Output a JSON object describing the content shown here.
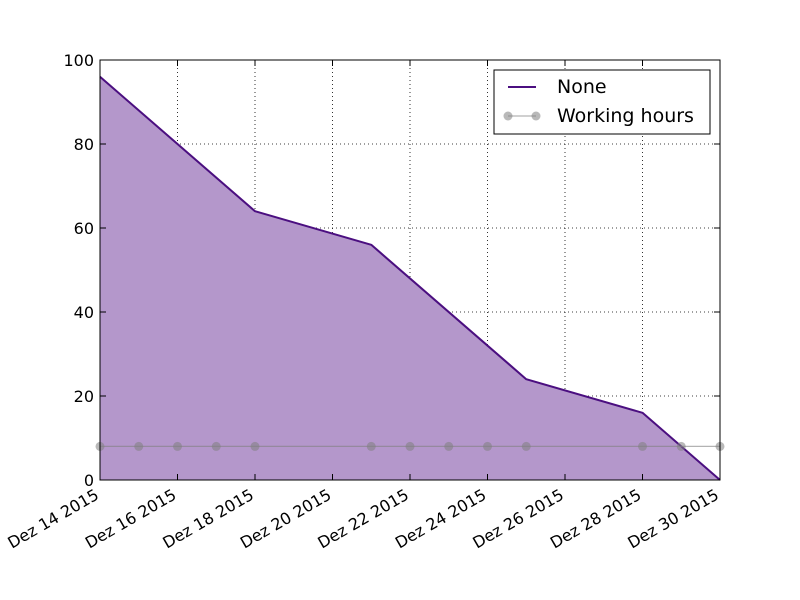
{
  "chart_data": {
    "type": "area",
    "x_type": "date",
    "xlim": [
      "2015-12-14",
      "2015-12-30"
    ],
    "ylim": [
      0,
      100
    ],
    "x_ticks": [
      {
        "date": "2015-12-14",
        "label": "Dez 14 2015"
      },
      {
        "date": "2015-12-16",
        "label": "Dez 16 2015"
      },
      {
        "date": "2015-12-18",
        "label": "Dez 18 2015"
      },
      {
        "date": "2015-12-20",
        "label": "Dez 20 2015"
      },
      {
        "date": "2015-12-22",
        "label": "Dez 22 2015"
      },
      {
        "date": "2015-12-24",
        "label": "Dez 24 2015"
      },
      {
        "date": "2015-12-26",
        "label": "Dez 26 2015"
      },
      {
        "date": "2015-12-28",
        "label": "Dez 28 2015"
      },
      {
        "date": "2015-12-30",
        "label": "Dez 30 2015"
      }
    ],
    "y_ticks": [
      0,
      20,
      40,
      60,
      80,
      100
    ],
    "grid": true,
    "grid_style": "dotted",
    "legend_position": "top-right",
    "series": [
      {
        "name": "None",
        "style": "line-with-fill",
        "color": "#4b0f80",
        "fill_color": "#b497cb",
        "points": [
          {
            "x": "2015-12-14",
            "y": 96
          },
          {
            "x": "2015-12-18",
            "y": 64
          },
          {
            "x": "2015-12-21",
            "y": 56
          },
          {
            "x": "2015-12-25",
            "y": 24
          },
          {
            "x": "2015-12-28",
            "y": 16
          },
          {
            "x": "2015-12-30",
            "y": 0
          }
        ]
      },
      {
        "name": "Working hours",
        "style": "line-with-markers",
        "color": "#808080",
        "points": [
          {
            "x": "2015-12-14",
            "y": 8
          },
          {
            "x": "2015-12-15",
            "y": 8
          },
          {
            "x": "2015-12-16",
            "y": 8
          },
          {
            "x": "2015-12-17",
            "y": 8
          },
          {
            "x": "2015-12-18",
            "y": 8
          },
          {
            "x": "2015-12-21",
            "y": 8
          },
          {
            "x": "2015-12-22",
            "y": 8
          },
          {
            "x": "2015-12-23",
            "y": 8
          },
          {
            "x": "2015-12-24",
            "y": 8
          },
          {
            "x": "2015-12-25",
            "y": 8
          },
          {
            "x": "2015-12-28",
            "y": 8
          },
          {
            "x": "2015-12-29",
            "y": 8
          },
          {
            "x": "2015-12-30",
            "y": 8
          }
        ]
      }
    ]
  }
}
